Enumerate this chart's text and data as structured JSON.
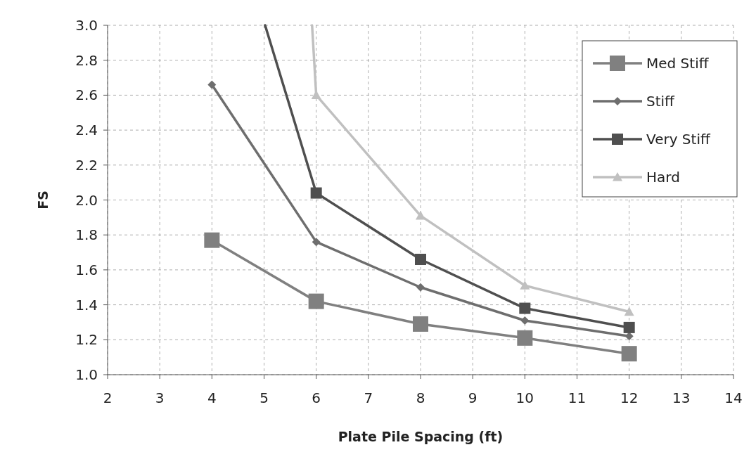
{
  "chart_data": {
    "type": "line",
    "xlabel": "Plate Pile Spacing (ft)",
    "ylabel": "FS",
    "xlim": [
      2,
      14
    ],
    "xticks": [
      2,
      3,
      4,
      5,
      6,
      7,
      8,
      9,
      10,
      11,
      12,
      13,
      14
    ],
    "ylim": [
      1.0,
      3.0
    ],
    "yticks": [
      {
        "value": 1.0,
        "label": "1.0"
      },
      {
        "value": 1.2,
        "label": "1.2"
      },
      {
        "value": 1.4,
        "label": "1.4"
      },
      {
        "value": 1.6,
        "label": "1.6"
      },
      {
        "value": 1.8,
        "label": "1.8"
      },
      {
        "value": 2.0,
        "label": "2.0"
      },
      {
        "value": 2.2,
        "label": "2.2"
      },
      {
        "value": 2.4,
        "label": "2.4"
      },
      {
        "value": 2.6,
        "label": "2.6"
      },
      {
        "value": 2.8,
        "label": "2.8"
      },
      {
        "value": 3.0,
        "label": "3.0"
      }
    ],
    "grid": true,
    "legend": "top right",
    "line_style": "solid",
    "series": [
      {
        "name": "Med Stiff",
        "color": "#808080",
        "marker": "square",
        "x": [
          4,
          6,
          8,
          10,
          12
        ],
        "values": [
          1.77,
          1.42,
          1.29,
          1.21,
          1.12
        ]
      },
      {
        "name": "Stiff",
        "color": "#6e6e6e",
        "marker": "diamond",
        "x": [
          4,
          6,
          8,
          10,
          12
        ],
        "values": [
          2.66,
          1.76,
          1.5,
          1.31,
          1.22
        ]
      },
      {
        "name": "Very Stiff",
        "color": "#4f4f4f",
        "marker": "square",
        "x": [
          5.02,
          6,
          8,
          10,
          12
        ],
        "values": [
          3.0,
          2.04,
          1.66,
          1.38,
          1.27
        ]
      },
      {
        "name": "Hard",
        "color": "#c0c0c0",
        "marker": "triangle",
        "x": [
          5.92,
          6,
          8,
          10,
          12
        ],
        "values": [
          3.0,
          2.6,
          1.91,
          1.51,
          1.36
        ]
      }
    ]
  }
}
